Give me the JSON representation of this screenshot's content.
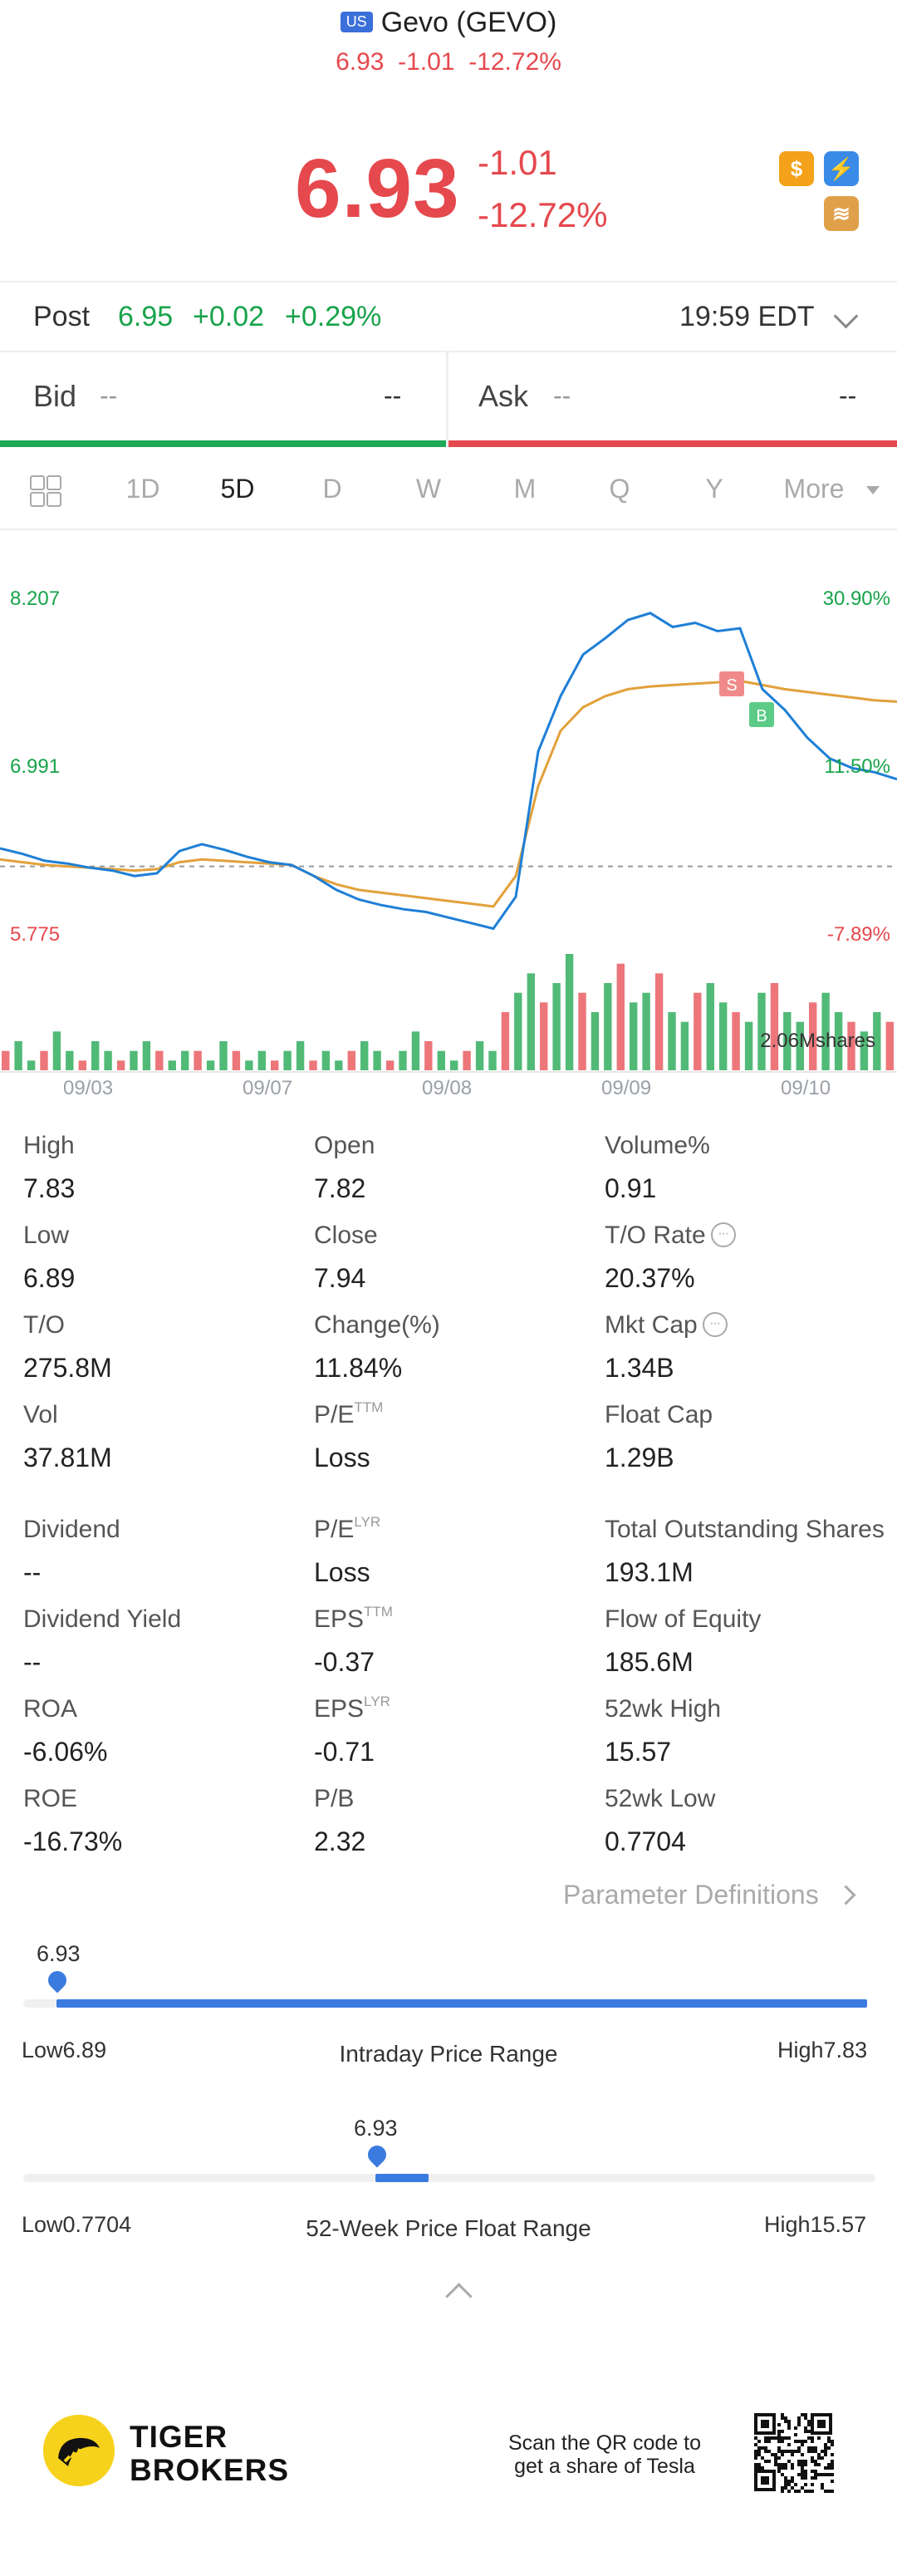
{
  "header": {
    "market_badge": "US",
    "title": "Gevo (GEVO)",
    "sub_price": "6.93",
    "sub_change": "-1.01",
    "sub_pct": "-12.72%"
  },
  "quote": {
    "price": "6.93",
    "change": "-1.01",
    "pct": "-12.72%",
    "icons": [
      "dollar-icon",
      "lightning-icon",
      "layers-icon"
    ]
  },
  "post": {
    "label": "Post",
    "price": "6.95",
    "change": "+0.02",
    "pct": "+0.29%",
    "time": "19:59 EDT"
  },
  "bid_ask": {
    "bid_label": "Bid",
    "bid_size": "--",
    "bid_value": "--",
    "ask_label": "Ask",
    "ask_size": "--",
    "ask_value": "--"
  },
  "tabs": [
    "1D",
    "5D",
    "D",
    "W",
    "M",
    "Q",
    "Y",
    "More"
  ],
  "active_tab": "5D",
  "chart_data": {
    "type": "line",
    "y_left_labels": [
      "8.207",
      "6.991",
      "5.775"
    ],
    "y_right_labels": [
      "30.90%",
      "11.50%",
      "-7.89%"
    ],
    "x_labels": [
      "09/03",
      "09/07",
      "09/08",
      "09/09",
      "09/10"
    ],
    "volume_label": "2.06Mshares",
    "reference_price": 6.27,
    "ylim": [
      5.775,
      8.207
    ],
    "markers": [
      "S",
      "B"
    ],
    "series": [
      {
        "values": [
          6.4,
          6.36,
          6.31,
          6.29,
          6.26,
          6.24,
          6.2,
          6.22,
          6.38,
          6.43,
          6.39,
          6.34,
          6.3,
          6.28,
          6.2,
          6.1,
          6.03,
          5.99,
          5.96,
          5.94,
          5.9,
          5.86,
          5.82,
          6.05,
          7.1,
          7.5,
          7.8,
          7.92,
          8.05,
          8.1,
          8.0,
          8.03,
          7.97,
          7.99,
          7.55,
          7.4,
          7.2,
          7.05,
          6.98,
          6.95,
          6.9
        ]
      },
      {
        "values": [
          6.32,
          6.3,
          6.28,
          6.27,
          6.26,
          6.25,
          6.24,
          6.25,
          6.3,
          6.32,
          6.31,
          6.3,
          6.29,
          6.28,
          6.2,
          6.14,
          6.1,
          6.08,
          6.06,
          6.04,
          6.02,
          6.0,
          5.98,
          6.2,
          6.85,
          7.25,
          7.42,
          7.5,
          7.55,
          7.57,
          7.58,
          7.59,
          7.6,
          7.61,
          7.58,
          7.55,
          7.53,
          7.51,
          7.49,
          7.47,
          7.46
        ]
      }
    ],
    "volume": [
      2,
      3,
      1,
      2,
      4,
      2,
      1,
      3,
      2,
      1,
      2,
      3,
      2,
      1,
      2,
      2,
      1,
      3,
      2,
      1,
      2,
      1,
      2,
      3,
      1,
      2,
      1,
      2,
      3,
      2,
      1,
      2,
      4,
      3,
      2,
      1,
      2,
      3,
      2,
      6,
      8,
      10,
      7,
      9,
      12,
      8,
      6,
      9,
      11,
      7,
      8,
      10,
      6,
      5,
      8,
      9,
      7,
      6,
      5,
      8,
      9,
      6,
      5,
      7,
      8,
      6,
      5,
      4,
      6,
      5
    ]
  },
  "stats": {
    "high_label": "High",
    "high": "7.83",
    "open_label": "Open",
    "open": "7.82",
    "volpct_label": "Volume%",
    "volpct": "0.91",
    "low_label": "Low",
    "low": "6.89",
    "close_label": "Close",
    "close": "7.94",
    "torate_label": "T/O Rate",
    "torate": "20.37%",
    "to_label": "T/O",
    "to": "275.8M",
    "change_label": "Change(%)",
    "change": "11.84%",
    "mktcap_label": "Mkt Cap",
    "mktcap": "1.34B",
    "vol_label": "Vol",
    "vol": "37.81M",
    "pe_ttm_label": "P/E",
    "pe_ttm_sup": "TTM",
    "pe_ttm": "Loss",
    "floatcap_label": "Float Cap",
    "floatcap": "1.29B",
    "dividend_label": "Dividend",
    "dividend": "--",
    "pe_lyr_label": "P/E",
    "pe_lyr_sup": "LYR",
    "pe_lyr": "Loss",
    "tos_label": "Total Outstanding Shares",
    "tos": "193.1M",
    "divyield_label": "Dividend Yield",
    "divyield": "--",
    "eps_ttm_label": "EPS",
    "eps_ttm_sup": "TTM",
    "eps_ttm": "-0.37",
    "foe_label": "Flow of Equity",
    "foe": "185.6M",
    "roa_label": "ROA",
    "roa": "-6.06%",
    "eps_lyr_label": "EPS",
    "eps_lyr_sup": "LYR",
    "eps_lyr": "-0.71",
    "wk52h_label": "52wk High",
    "wk52h": "15.57",
    "roe_label": "ROE",
    "roe": "-16.73%",
    "pb_label": "P/B",
    "pb": "2.32",
    "wk52l_label": "52wk Low",
    "wk52l": "0.7704",
    "param_def": "Parameter Definitions"
  },
  "intraday": {
    "current": "6.93",
    "low": "Low6.89",
    "high": "High7.83",
    "title": "Intraday Price Range",
    "position": 0.04
  },
  "week52": {
    "current": "6.93",
    "low": "Low0.7704",
    "high": "High15.57",
    "title": "52-Week Price Float Range",
    "position": 0.42
  },
  "footer": {
    "brand1": "TIGER",
    "brand2": "BROKERS",
    "scan1": "Scan the QR code to",
    "scan2": "get a share of Tesla"
  },
  "colors": {
    "up": "#17a34a",
    "down": "#e5484d",
    "accent": "#3b7be0",
    "line": "#1e7fd6",
    "avg": "#e2a13b"
  }
}
